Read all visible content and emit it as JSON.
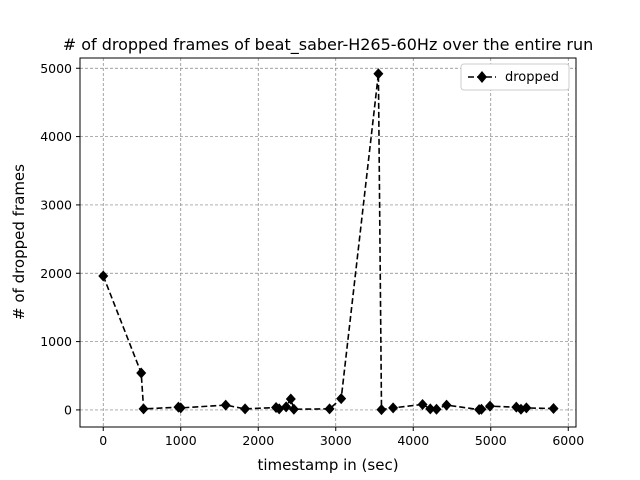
{
  "chart_data": {
    "type": "line",
    "title": "# of dropped frames of beat_saber-H265-60Hz over the entire run",
    "xlabel": "timestamp in (sec)",
    "ylabel": "# of dropped frames",
    "xlim": [
      -300,
      6100
    ],
    "ylim": [
      -250,
      5150
    ],
    "xticks": [
      0,
      1000,
      2000,
      3000,
      4000,
      5000,
      6000
    ],
    "yticks": [
      0,
      1000,
      2000,
      3000,
      4000,
      5000
    ],
    "grid": true,
    "legend_position": "top-right",
    "series": [
      {
        "name": "dropped",
        "color": "#000000",
        "line_style": "dashed",
        "marker": "diamond",
        "x": [
          0,
          490,
          520,
          970,
          1000,
          1580,
          1830,
          2230,
          2270,
          2360,
          2420,
          2460,
          2920,
          3070,
          3550,
          3590,
          3740,
          4120,
          4220,
          4300,
          4430,
          4850,
          4880,
          4990,
          5330,
          5390,
          5460,
          5810
        ],
        "y": [
          1960,
          540,
          15,
          40,
          30,
          70,
          15,
          35,
          15,
          45,
          160,
          10,
          15,
          165,
          4920,
          5,
          30,
          80,
          15,
          10,
          70,
          5,
          10,
          55,
          40,
          10,
          30,
          20
        ]
      }
    ]
  }
}
